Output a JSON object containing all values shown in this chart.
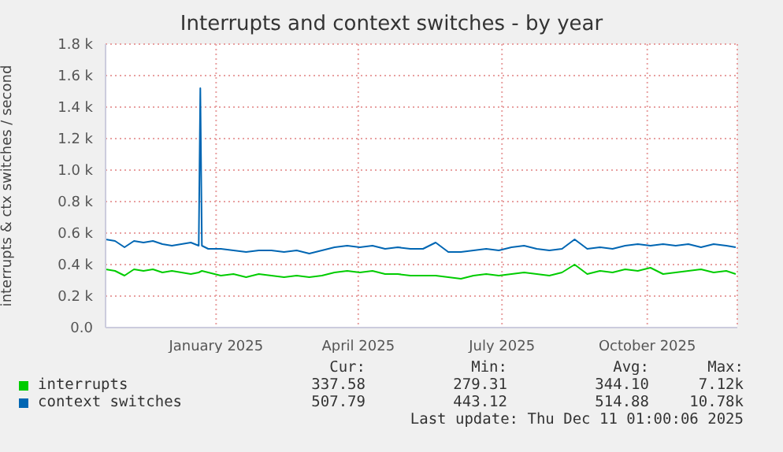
{
  "chart_data": {
    "type": "line",
    "title": "Interrupts and context switches - by year",
    "ylabel": "interrupts & ctx switches / second",
    "x": [
      "2024-11-06",
      "2024-11-12",
      "2024-11-18",
      "2024-11-24",
      "2024-11-30",
      "2024-12-06",
      "2024-12-12",
      "2024-12-18",
      "2024-12-24",
      "2024-12-30",
      "2025-01-04",
      "2025-01-05",
      "2025-01-06",
      "2025-01-10",
      "2025-01-18",
      "2025-01-26",
      "2025-02-03",
      "2025-02-11",
      "2025-02-19",
      "2025-02-27",
      "2025-03-07",
      "2025-03-15",
      "2025-03-23",
      "2025-03-31",
      "2025-04-08",
      "2025-04-16",
      "2025-04-24",
      "2025-05-02",
      "2025-05-10",
      "2025-05-18",
      "2025-05-26",
      "2025-06-03",
      "2025-06-11",
      "2025-06-19",
      "2025-06-27",
      "2025-07-05",
      "2025-07-13",
      "2025-07-21",
      "2025-07-29",
      "2025-08-06",
      "2025-08-14",
      "2025-08-22",
      "2025-08-30",
      "2025-09-07",
      "2025-09-15",
      "2025-09-23",
      "2025-10-01",
      "2025-10-09",
      "2025-10-17",
      "2025-10-25",
      "2025-11-02",
      "2025-11-10",
      "2025-11-18",
      "2025-11-26",
      "2025-12-04",
      "2025-12-10"
    ],
    "series": [
      {
        "name": "interrupts",
        "color": "#00cc00",
        "values": [
          0.37,
          0.36,
          0.33,
          0.37,
          0.36,
          0.37,
          0.35,
          0.36,
          0.35,
          0.34,
          0.35,
          null,
          0.36,
          0.35,
          0.33,
          0.34,
          0.32,
          0.34,
          0.33,
          0.32,
          0.33,
          0.32,
          0.33,
          0.35,
          0.36,
          0.35,
          0.36,
          0.34,
          0.34,
          0.33,
          0.33,
          0.33,
          0.32,
          0.31,
          0.33,
          0.34,
          0.33,
          0.34,
          0.35,
          0.34,
          0.33,
          0.35,
          0.4,
          0.34,
          0.36,
          0.35,
          0.37,
          0.36,
          0.38,
          0.34,
          0.35,
          0.36,
          0.37,
          0.35,
          0.36,
          0.34
        ]
      },
      {
        "name": "context switches",
        "color": "#0066b3",
        "values": [
          0.56,
          0.55,
          0.51,
          0.55,
          0.54,
          0.55,
          0.53,
          0.52,
          0.53,
          0.54,
          0.52,
          1.52,
          0.52,
          0.5,
          0.5,
          0.49,
          0.48,
          0.49,
          0.49,
          0.48,
          0.49,
          0.47,
          0.49,
          0.51,
          0.52,
          0.51,
          0.52,
          0.5,
          0.51,
          0.5,
          0.5,
          0.54,
          0.48,
          0.48,
          0.49,
          0.5,
          0.49,
          0.51,
          0.52,
          0.5,
          0.49,
          0.5,
          0.56,
          0.5,
          0.51,
          0.5,
          0.52,
          0.53,
          0.52,
          0.53,
          0.52,
          0.53,
          0.51,
          0.53,
          0.52,
          0.51
        ]
      }
    ],
    "xlim": [
      "2024-11-06",
      "2025-12-11"
    ],
    "xticks": [
      {
        "value": "2025-01-15",
        "label": "January 2025"
      },
      {
        "value": "2025-04-15",
        "label": "April 2025"
      },
      {
        "value": "2025-07-15",
        "label": "July 2025"
      },
      {
        "value": "2025-10-15",
        "label": "October 2025"
      }
    ],
    "ylim": [
      0,
      1.8
    ],
    "yticks": [
      {
        "value": 0,
        "label": "0.0"
      },
      {
        "value": 0.2,
        "label": "0.2 k"
      },
      {
        "value": 0.4,
        "label": "0.4 k"
      },
      {
        "value": 0.6,
        "label": "0.6 k"
      },
      {
        "value": 0.8,
        "label": "0.8 k"
      },
      {
        "value": 1.0,
        "label": "1.0 k"
      },
      {
        "value": 1.2,
        "label": "1.2 k"
      },
      {
        "value": 1.4,
        "label": "1.4 k"
      },
      {
        "value": 1.6,
        "label": "1.6 k"
      },
      {
        "value": 1.8,
        "label": "1.8 k"
      }
    ],
    "grid": true,
    "legend": "bottom",
    "marker": "none",
    "line_style": "solid",
    "annotations": [
      "Cur:",
      "Min:",
      "Avg:",
      "Max:",
      "337.58",
      "279.31",
      "344.10",
      "7.12k",
      "507.79",
      "443.12",
      "514.88",
      "10.78k",
      "Last update: Thu Dec 11 01:00:06 2025"
    ]
  }
}
